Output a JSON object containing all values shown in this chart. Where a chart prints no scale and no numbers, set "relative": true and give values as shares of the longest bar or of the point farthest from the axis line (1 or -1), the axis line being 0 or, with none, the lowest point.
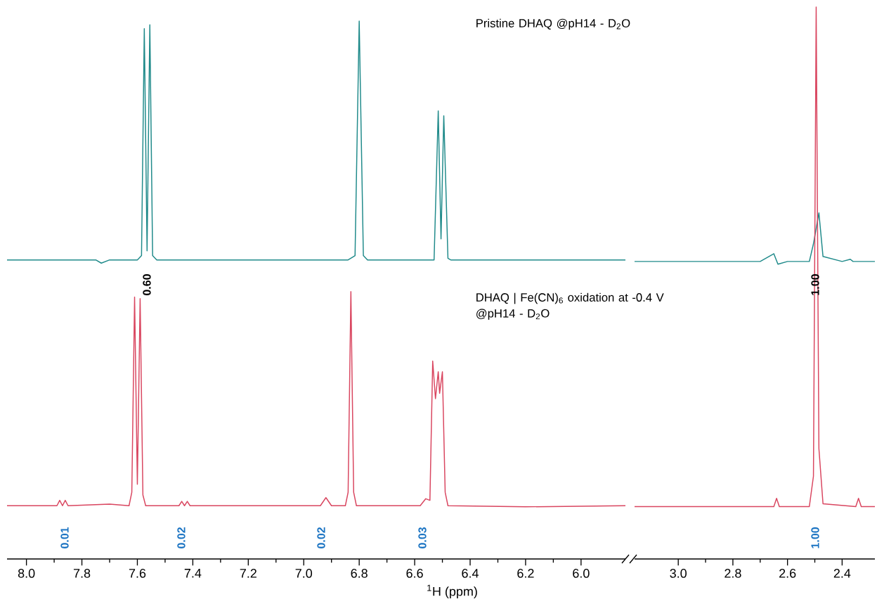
{
  "chart_data": [
    {
      "type": "line",
      "relative": true,
      "xlim": [
        8.07,
        5.84
      ],
      "xlabel": "$^{1}$H (ppm)",
      "xticks": [
        {
          "value": 8,
          "label": "8.0"
        },
        {
          "value": 7.8,
          "label": "7.8"
        },
        {
          "value": 7.6,
          "label": "7.6"
        },
        {
          "value": 7.4,
          "label": "7.4"
        },
        {
          "value": 7.2,
          "label": "7.2"
        },
        {
          "value": 7,
          "label": "7.0"
        },
        {
          "value": 6.8,
          "label": "6.8"
        },
        {
          "value": 6.6,
          "label": "6.6"
        },
        {
          "value": 6.4,
          "label": "6.4"
        },
        {
          "value": 6.2,
          "label": "6.2"
        },
        {
          "value": 6,
          "label": "6.0"
        }
      ],
      "series": [
        {
          "color": "#1f8a8a",
          "x": [
            8.07,
            7.75,
            7.73,
            7.7,
            7.6,
            7.585,
            7.575,
            7.565,
            7.555,
            7.545,
            7.53,
            6.95,
            6.84,
            6.815,
            6.8,
            6.785,
            6.77,
            6.64,
            6.53,
            6.515,
            6.505,
            6.495,
            6.48,
            6.47,
            5.84
          ],
          "values": [
            0.556,
            0.556,
            0.55,
            0.556,
            0.556,
            0.564,
            0.986,
            0.573,
            0.993,
            0.564,
            0.556,
            0.556,
            0.556,
            0.564,
            1,
            0.564,
            0.556,
            0.556,
            0.556,
            0.833,
            0.595,
            0.824,
            0.559,
            0.556,
            0.556
          ]
        },
        {
          "color": "#d9455f",
          "x": [
            8.07,
            7.89,
            7.88,
            7.87,
            7.86,
            7.85,
            7.7,
            7.63,
            7.62,
            7.61,
            7.6,
            7.59,
            7.58,
            7.57,
            7.45,
            7.44,
            7.43,
            7.42,
            7.41,
            6.94,
            6.92,
            6.9,
            6.85,
            6.84,
            6.83,
            6.82,
            6.81,
            6.58,
            6.56,
            6.545,
            6.535,
            6.525,
            6.515,
            6.51,
            6.5,
            6.49,
            6.48,
            6.2,
            5.84
          ],
          "values": [
            0.099,
            0.099,
            0.109,
            0.099,
            0.109,
            0.099,
            0.102,
            0.099,
            0.124,
            0.487,
            0.139,
            0.484,
            0.119,
            0.099,
            0.099,
            0.107,
            0.099,
            0.107,
            0.099,
            0.099,
            0.114,
            0.099,
            0.099,
            0.124,
            0.497,
            0.124,
            0.099,
            0.099,
            0.112,
            0.109,
            0.368,
            0.298,
            0.348,
            0.308,
            0.348,
            0.124,
            0.099,
            0.097,
            0.099
          ]
        }
      ],
      "annotations": [
        "Pristine DHAQ @pH14 - D$_{2}$O",
        "0.60",
        "DHAQ | Fe(CN)$_{6}$ oxidation at -0.4 V @pH14 - D$_{2}$O",
        "0.01",
        "0.02",
        "0.02",
        "0.03"
      ]
    },
    {
      "type": "line",
      "relative": true,
      "xlim": [
        3.16,
        2.28
      ],
      "xticks": [
        {
          "value": 3,
          "label": "3.0"
        },
        {
          "value": 2.8,
          "label": "2.8"
        },
        {
          "value": 2.6,
          "label": "2.6"
        },
        {
          "value": 2.4,
          "label": "2.4"
        }
      ],
      "series": [
        {
          "color": "#1f8a8a",
          "x": [
            3.16,
            2.7,
            2.65,
            2.635,
            2.6,
            2.52,
            2.505,
            2.495,
            2.485,
            2.47,
            2.4,
            2.37,
            2.36,
            2.28
          ],
          "values": [
            0.539,
            0.539,
            0.553,
            0.534,
            0.539,
            0.539,
            0.571,
            null,
            0.627,
            0.548,
            0.539,
            0.543,
            0.539,
            0.539
          ]
        },
        {
          "color": "#d9455f",
          "x": [
            3.16,
            2.65,
            2.64,
            2.63,
            2.52,
            2.505,
            2.495,
            2.485,
            2.47,
            2.35,
            2.34,
            2.33,
            2.28
          ],
          "values": [
            0.095,
            0.095,
            0.11,
            0.095,
            0.095,
            0.15,
            1,
            0.2,
            0.1,
            0.095,
            0.11,
            0.095,
            0.095
          ]
        }
      ],
      "annotations": [
        "1.00",
        "1.00"
      ]
    }
  ]
}
